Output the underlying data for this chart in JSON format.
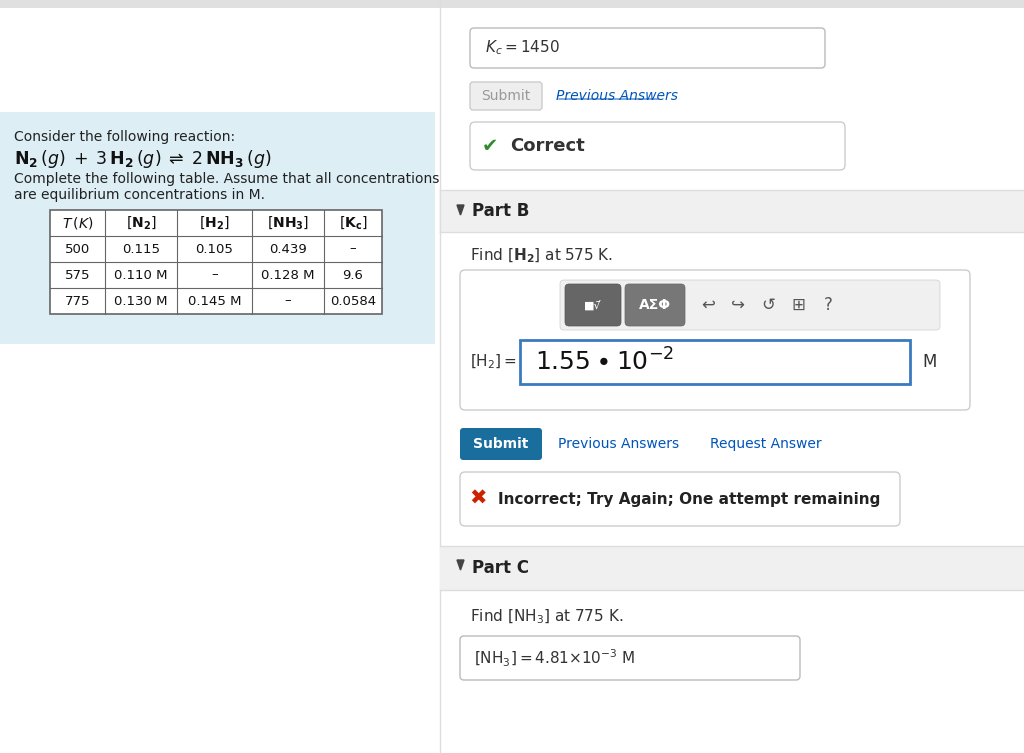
{
  "bg_color": "#ffffff",
  "left_panel_bg": "#ddeef5",
  "reaction_line1": "Consider the following reaction:",
  "reaction_line2_math": true,
  "reaction_line3": "Complete the following table. Assume that all concentrations",
  "reaction_line4": "are equilibrium concentrations in M.",
  "table_rows": [
    [
      "500",
      "0.115",
      "0.105",
      "0.439",
      "–"
    ],
    [
      "575",
      "0.110 M",
      "–",
      "0.128 M",
      "9.6"
    ],
    [
      "775",
      "0.130 M",
      "0.145 M",
      "–",
      "0.0584"
    ]
  ],
  "kc_input_text": "$\\mathit{K}_c = 1450$",
  "submit_gray_text": "Submit",
  "prev_answers_text": "Previous Answers",
  "prev_answers_color": "#0055bb",
  "correct_check": "✔",
  "correct_check_color": "#2e8b2e",
  "correct_text": "Correct",
  "part_b_label": "Part B",
  "part_b_header_bg": "#f0f0f0",
  "find_h2_text_pre": "Find ",
  "find_h2_text_post": " at 575 K.",
  "answer_b_label": "$[\\mathrm{H_2}] =$",
  "answer_b_value": "$1.55 \\bullet 10^{-2}$",
  "answer_b_unit": "M",
  "submit_blue_text": "Submit",
  "submit_blue_color": "#1a6e9e",
  "prev_ans_b_text": "Previous Answers",
  "req_ans_text": "Request Answer",
  "link_color": "#0055bb",
  "incorrect_x": "✖",
  "incorrect_x_color": "#cc2200",
  "incorrect_text": "Incorrect; Try Again; One attempt remaining",
  "part_c_label": "Part C",
  "part_c_header_bg": "#f0f0f0",
  "find_nh3_text": "Find $[\\mathrm{NH_3}]$ at 775 K.",
  "answer_c_value": "$[\\mathrm{NH_3}] = 4.81{\\times}10^{-3}\\,$M",
  "divider_color": "#cccccc",
  "text_color": "#333333"
}
